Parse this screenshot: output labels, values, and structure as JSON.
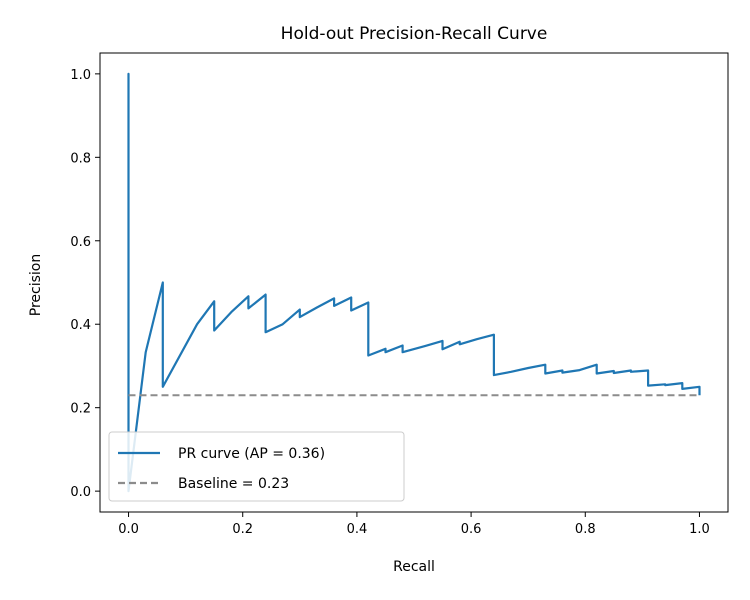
{
  "chart_data": {
    "type": "line",
    "title": "Hold-out Precision-Recall Curve",
    "xlabel": "Recall",
    "ylabel": "Precision",
    "xlim": [
      -0.05,
      1.05
    ],
    "ylim": [
      -0.05,
      1.05
    ],
    "x_ticks": [
      0.0,
      0.2,
      0.4,
      0.6,
      0.8,
      1.0
    ],
    "y_ticks": [
      0.0,
      0.2,
      0.4,
      0.6,
      0.8,
      1.0
    ],
    "x_tick_labels": [
      "0.0",
      "0.2",
      "0.4",
      "0.6",
      "0.8",
      "1.0"
    ],
    "y_tick_labels": [
      "0.0",
      "0.2",
      "0.4",
      "0.6",
      "0.8",
      "1.0"
    ],
    "grid": false,
    "legend_position": "lower-left",
    "series": [
      {
        "name": "PR curve (AP = 0.36)",
        "color": "#1f77b4",
        "style": "solid",
        "x": [
          0.0,
          0.0,
          0.0,
          0.03,
          0.06,
          0.06,
          0.12,
          0.15,
          0.15,
          0.18,
          0.21,
          0.21,
          0.24,
          0.24,
          0.27,
          0.3,
          0.3,
          0.33,
          0.36,
          0.36,
          0.39,
          0.39,
          0.42,
          0.42,
          0.45,
          0.45,
          0.48,
          0.48,
          0.52,
          0.55,
          0.55,
          0.58,
          0.58,
          0.61,
          0.64,
          0.64,
          0.67,
          0.7,
          0.73,
          0.73,
          0.76,
          0.76,
          0.79,
          0.82,
          0.82,
          0.85,
          0.85,
          0.88,
          0.88,
          0.91,
          0.91,
          0.94,
          0.94,
          0.97,
          0.97,
          1.0,
          1.0
        ],
        "y": [
          0.0,
          1.0,
          0.0,
          0.333,
          0.5,
          0.25,
          0.4,
          0.455,
          0.385,
          0.429,
          0.467,
          0.438,
          0.471,
          0.381,
          0.4,
          0.435,
          0.417,
          0.44,
          0.462,
          0.444,
          0.464,
          0.433,
          0.452,
          0.325,
          0.341,
          0.333,
          0.349,
          0.333,
          0.348,
          0.36,
          0.34,
          0.358,
          0.352,
          0.364,
          0.375,
          0.278,
          0.286,
          0.295,
          0.303,
          0.282,
          0.289,
          0.284,
          0.29,
          0.303,
          0.282,
          0.288,
          0.283,
          0.289,
          0.286,
          0.289,
          0.253,
          0.256,
          0.254,
          0.259,
          0.245,
          0.25,
          0.23
        ]
      },
      {
        "name": "Baseline = 0.23",
        "color": "#8c8c8c",
        "style": "dashed",
        "x": [
          0.0,
          1.0
        ],
        "y": [
          0.23,
          0.23
        ]
      }
    ]
  }
}
